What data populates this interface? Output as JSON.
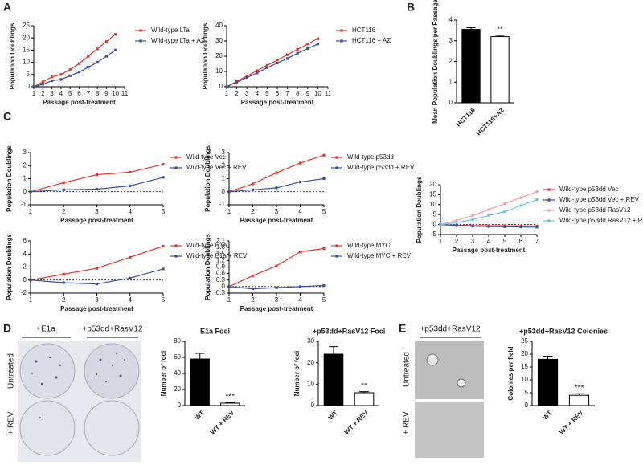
{
  "panel_labels": [
    "A",
    "B",
    "C",
    "D",
    "E"
  ],
  "images": {
    "D": {
      "column_labels": [
        "+E1a",
        "+p53dd+RasV12"
      ],
      "row_labels": [
        "Untreated",
        "+ REV"
      ]
    },
    "E": {
      "column_labels": [
        "+p53dd+RasV12"
      ],
      "row_labels": [
        "Untreated",
        "+ REV"
      ]
    }
  },
  "chart_data": [
    {
      "type": "line",
      "x_label": "Passage post-treatment",
      "y_label": "Population Doublings",
      "x": [
        1,
        2,
        3,
        4,
        5,
        6,
        7,
        8,
        9,
        10
      ],
      "xlim": [
        1,
        11
      ],
      "xticks": [
        1,
        2,
        3,
        4,
        5,
        6,
        7,
        8,
        9,
        10,
        11
      ],
      "ylim": [
        0,
        25
      ],
      "yticks": [
        0,
        5,
        10,
        15,
        20,
        25
      ],
      "series": [
        {
          "name": "Wild-type LTa",
          "color": "#e8352b",
          "values": [
            0,
            2,
            4,
            5,
            7,
            9.5,
            12.5,
            15.5,
            18.5,
            21.5
          ]
        },
        {
          "name": "Wild-type LTa + AZ",
          "color": "#3a4fa0",
          "values": [
            0,
            1,
            2.5,
            3,
            4.5,
            6,
            8,
            10,
            12.5,
            15
          ]
        }
      ]
    },
    {
      "type": "line",
      "x_label": "Passage post-treatment",
      "y_label": "Population Doublings",
      "x": [
        1,
        2,
        3,
        4,
        5,
        6,
        7,
        8,
        9,
        10
      ],
      "xlim": [
        1,
        11
      ],
      "xticks": [
        1,
        2,
        3,
        4,
        5,
        6,
        7,
        8,
        9,
        10,
        11
      ],
      "ylim": [
        0,
        40
      ],
      "yticks": [
        0,
        10,
        20,
        30,
        40
      ],
      "series": [
        {
          "name": "HCT116",
          "color": "#e8352b",
          "values": [
            0,
            3.5,
            7,
            10.5,
            14,
            17.5,
            21,
            24.5,
            28,
            31.5
          ]
        },
        {
          "name": "HCT116 + AZ",
          "color": "#3a4fa0",
          "values": [
            0,
            3,
            6,
            9,
            12.5,
            15.5,
            18.5,
            22,
            25,
            28
          ]
        }
      ]
    },
    {
      "type": "bar",
      "y_label": "Mean Population Doublings per Passage",
      "categories": [
        "HCT116",
        "HCT116+AZ"
      ],
      "values": [
        3.55,
        3.2
      ],
      "errors": [
        0.08,
        0.06
      ],
      "colors": [
        "#000000",
        "#ffffff"
      ],
      "annotation": "**",
      "ylim": [
        0,
        4
      ],
      "yticks": [
        0,
        1,
        2,
        3,
        4
      ]
    },
    {
      "type": "line",
      "x_label": "Passage post-treatment",
      "y_label": "Population Doublings",
      "zero_line": true,
      "x": [
        1,
        2,
        3,
        4,
        5
      ],
      "xlim": [
        1,
        5
      ],
      "xticks": [
        1,
        2,
        3,
        4,
        5
      ],
      "ylim": [
        -1,
        3
      ],
      "yticks": [
        -1,
        0,
        1,
        2,
        3
      ],
      "series": [
        {
          "name": "Wild-type Vec",
          "color": "#e8352b",
          "values": [
            0,
            0.7,
            1.3,
            1.5,
            2.1
          ]
        },
        {
          "name": "Wild-type Vec + REV",
          "color": "#3a4fa0",
          "values": [
            0,
            0.15,
            0.2,
            0.45,
            1.1
          ]
        }
      ]
    },
    {
      "type": "line",
      "x_label": "Passage post-treatment",
      "y_label": "Population Doublings",
      "zero_line": true,
      "x": [
        1,
        2,
        3,
        4,
        5
      ],
      "xlim": [
        1,
        5
      ],
      "xticks": [
        1,
        2,
        3,
        4,
        5
      ],
      "ylim": [
        -1,
        3
      ],
      "yticks": [
        -1,
        0,
        1,
        2,
        3
      ],
      "series": [
        {
          "name": "Wild-type p53dd",
          "color": "#e8352b",
          "values": [
            0,
            0.6,
            1.45,
            2.2,
            2.8
          ]
        },
        {
          "name": "Wild-type p53dd + REV",
          "color": "#3a4fa0",
          "values": [
            0,
            0.15,
            0.3,
            0.75,
            1.0
          ]
        }
      ]
    },
    {
      "type": "line",
      "x_label": "Passage post-treatment",
      "y_label": "Population Doublings",
      "zero_line": true,
      "x": [
        1,
        2,
        3,
        4,
        5
      ],
      "xlim": [
        1,
        5
      ],
      "xticks": [
        1,
        2,
        3,
        4,
        5
      ],
      "ylim": [
        -2,
        6
      ],
      "yticks": [
        -2,
        0,
        2,
        4,
        6
      ],
      "series": [
        {
          "name": "Wild-type E1A",
          "color": "#e8352b",
          "values": [
            0,
            0.9,
            1.8,
            3.5,
            5.2
          ]
        },
        {
          "name": "Wild-type E1a + REV",
          "color": "#3a4fa0",
          "values": [
            0,
            -0.4,
            -0.6,
            0.3,
            1.7
          ]
        }
      ]
    },
    {
      "type": "line",
      "x_label": "Passage post-treatment",
      "y_label": "Population Doublings",
      "zero_line": true,
      "x": [
        1,
        2,
        3,
        4,
        5
      ],
      "xlim": [
        1,
        5
      ],
      "xticks": [
        1,
        2,
        3,
        4,
        5
      ],
      "ylim": [
        -0.3,
        2.1
      ],
      "yticks": [
        -0.3,
        0,
        0.3,
        0.6,
        0.9,
        1.2,
        1.5,
        1.8,
        2.1
      ],
      "series": [
        {
          "name": "Wild-type MYC",
          "color": "#e8352b",
          "values": [
            0,
            0.5,
            0.95,
            1.6,
            1.75
          ]
        },
        {
          "name": "Wild-type MYC + REV",
          "color": "#3a4fa0",
          "values": [
            0,
            -0.1,
            -0.05,
            0,
            0.05
          ]
        }
      ]
    },
    {
      "type": "line",
      "x_label": "Passage post-treatment",
      "y_label": "Population Doublings",
      "zero_line": true,
      "x": [
        1,
        2,
        3,
        4,
        5,
        6,
        7
      ],
      "xlim": [
        1,
        7
      ],
      "xticks": [
        1,
        2,
        3,
        4,
        5,
        6,
        7
      ],
      "ylim": [
        -5,
        20
      ],
      "yticks": [
        -5,
        0,
        5,
        10,
        15,
        20
      ],
      "series": [
        {
          "name": "Wild-type p53dd Vec",
          "color": "#e8352b",
          "values": [
            0,
            -0.3,
            -0.5,
            -0.6,
            -0.6,
            -0.7,
            -0.7
          ]
        },
        {
          "name": "Wild-type p53dd Vec + REV",
          "color": "#3a4fa0",
          "values": [
            0,
            -0.5,
            -0.8,
            -1,
            -1.1,
            -1.2,
            -1.3
          ]
        },
        {
          "name": "Wild-type p53dd RasV12",
          "color": "#f4a0a8",
          "values": [
            0,
            2,
            4.5,
            7.5,
            10.5,
            13.5,
            16.5
          ]
        },
        {
          "name": "Wild-type p53dd RasV12 + REV",
          "color": "#6cc3e0",
          "values": [
            0,
            1,
            2.5,
            4.5,
            6.5,
            9.5,
            12.5
          ]
        }
      ]
    },
    {
      "type": "bar",
      "title": "E1a Foci",
      "y_label": "Number of foci",
      "categories": [
        "WT",
        "WT + REV"
      ],
      "values": [
        58,
        3
      ],
      "errors": [
        7,
        1
      ],
      "colors": [
        "#000000",
        "#ffffff"
      ],
      "annotation": "***",
      "ylim": [
        0,
        80
      ],
      "yticks": [
        0,
        20,
        40,
        60,
        80
      ]
    },
    {
      "type": "bar",
      "title": "+p53dd+RasV12 Foci",
      "y_label": "Number of foci",
      "categories": [
        "WT",
        "WT + REV"
      ],
      "values": [
        24,
        6
      ],
      "errors": [
        3.5,
        0.5
      ],
      "colors": [
        "#000000",
        "#ffffff"
      ],
      "annotation": "**",
      "ylim": [
        0,
        30
      ],
      "yticks": [
        0,
        10,
        20,
        30
      ]
    },
    {
      "type": "bar",
      "title": "+p53dd+RasV12 Colonies",
      "y_label": "Colonies per field",
      "categories": [
        "WT",
        "WT + REV"
      ],
      "values": [
        18,
        4
      ],
      "errors": [
        1.2,
        0.6
      ],
      "colors": [
        "#000000",
        "#ffffff"
      ],
      "annotation": "***",
      "ylim": [
        0,
        25
      ],
      "yticks": [
        0,
        5,
        10,
        15,
        20,
        25
      ]
    }
  ]
}
